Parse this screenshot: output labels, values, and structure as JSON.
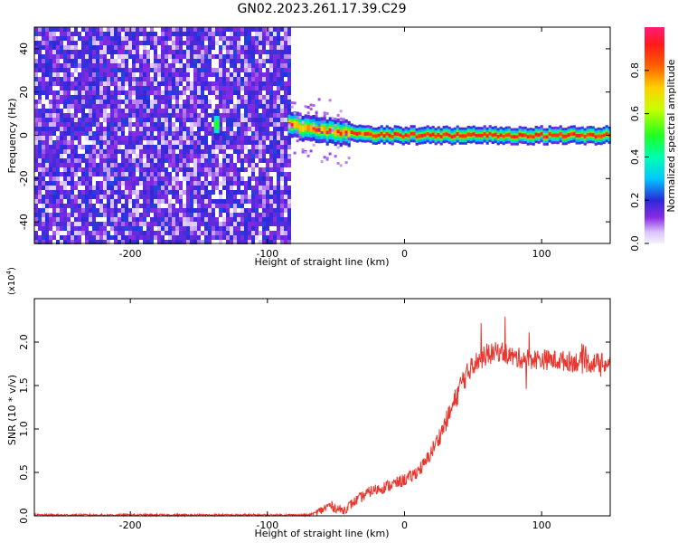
{
  "title": "GN02.2023.261.17.39.C29",
  "chart_data": [
    {
      "type": "heatmap",
      "xlabel": "Height of straight line (km)",
      "ylabel": "Frequency (Hz)",
      "xlim": [
        -270,
        150
      ],
      "ylim": [
        -50,
        50
      ],
      "xticks": [
        -200,
        -100,
        0,
        100
      ],
      "yticks": [
        -40,
        -20,
        0,
        20,
        40
      ],
      "grid": false,
      "noise_region_x": [
        -270,
        -85
      ],
      "band_center_hz": [
        {
          "x": -85,
          "y": 5
        },
        {
          "x": -70,
          "y": 3
        },
        {
          "x": -60,
          "y": 2
        },
        {
          "x": -40,
          "y": 1
        },
        {
          "x": -20,
          "y": 0
        },
        {
          "x": 0,
          "y": 0
        },
        {
          "x": 50,
          "y": 0
        },
        {
          "x": 100,
          "y": 0
        },
        {
          "x": 150,
          "y": 0
        }
      ],
      "isolated_peak": {
        "x": -137,
        "y": 5
      },
      "colorbar": {
        "label": "Normalized spectral amplitude",
        "range": [
          0,
          1
        ],
        "ticks": [
          0.0,
          0.2,
          0.4,
          0.6,
          0.8
        ]
      }
    },
    {
      "type": "line",
      "xlabel": "Height of straight line (km)",
      "ylabel": "SNR (10 * v/v)",
      "multiplier_label": "(x10",
      "multiplier_exp": "4",
      "xlim": [
        -270,
        150
      ],
      "ylim": [
        0,
        2.5
      ],
      "xticks": [
        -200,
        -100,
        0,
        100
      ],
      "yticks": [
        0.0,
        0.5,
        1.0,
        1.5,
        2.0
      ],
      "grid": false,
      "color": "#e8372f",
      "series": [
        {
          "x": [
            -270,
            -200,
            -150,
            -100,
            -70,
            -62,
            -55,
            -45,
            -35,
            -25,
            -15,
            -5,
            5,
            15,
            25,
            35,
            42,
            50,
            60,
            70,
            80,
            100,
            120,
            140,
            150
          ],
          "y": [
            0.01,
            0.01,
            0.01,
            0.01,
            0.01,
            0.05,
            0.12,
            0.06,
            0.18,
            0.28,
            0.33,
            0.38,
            0.45,
            0.6,
            0.9,
            1.25,
            1.55,
            1.75,
            1.85,
            1.9,
            1.82,
            1.8,
            1.78,
            1.76,
            1.75
          ]
        }
      ]
    }
  ]
}
